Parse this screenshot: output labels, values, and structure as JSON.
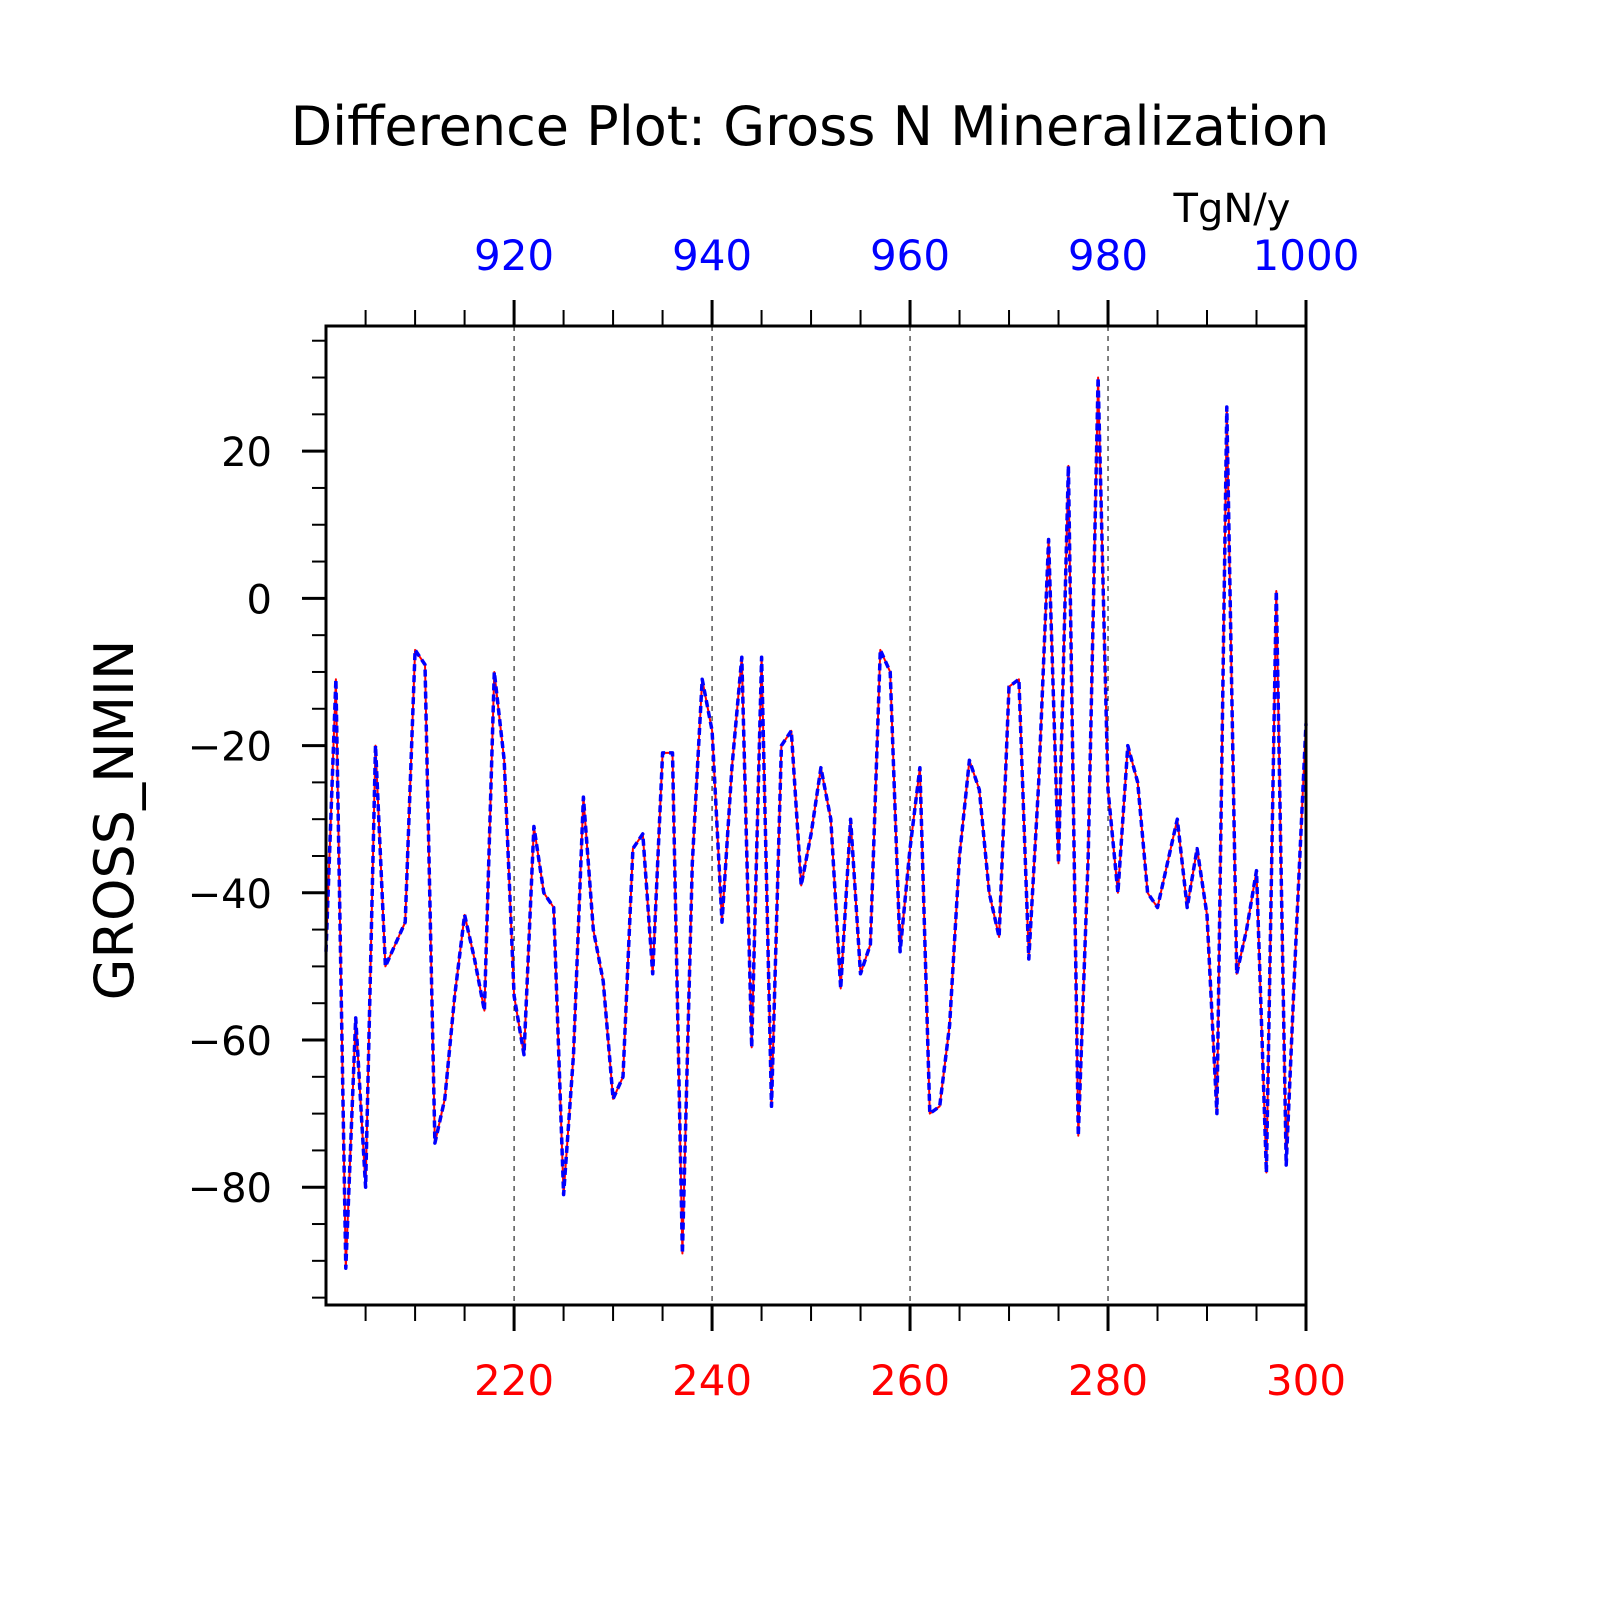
{
  "chart_data": {
    "type": "line",
    "title": "Difference Plot: Gross N Mineralization",
    "units": "TgN/y",
    "ylabel": "GROSS_NMIN",
    "xlim": [
      201,
      300
    ],
    "ylim": [
      -96,
      37
    ],
    "x_bottom": {
      "ticks": [
        220,
        240,
        260,
        280,
        300
      ],
      "color": "#ff0000"
    },
    "x_top": {
      "ticks": [
        920,
        940,
        960,
        980,
        1000
      ],
      "color": "#0000ff"
    },
    "y_ticks": [
      20,
      0,
      -20,
      -40,
      -60,
      -80
    ],
    "y_tick_labels": [
      "20",
      "0",
      "−20",
      "−40",
      "−60",
      "−80"
    ],
    "gridlines_x": [
      220,
      240,
      260,
      280
    ],
    "series": [
      {
        "color": "#ff0000",
        "style": "solid",
        "x": [
          201,
          202,
          203,
          204,
          205,
          206,
          207,
          208,
          209,
          210,
          211,
          212,
          213,
          214,
          215,
          216,
          217,
          218,
          219,
          220,
          221,
          222,
          223,
          224,
          225,
          226,
          227,
          228,
          229,
          230,
          231,
          232,
          233,
          234,
          235,
          236,
          237,
          238,
          239,
          240,
          241,
          242,
          243,
          244,
          245,
          246,
          247,
          248,
          249,
          250,
          251,
          252,
          253,
          254,
          255,
          256,
          257,
          258,
          259,
          260,
          261,
          262,
          263,
          264,
          265,
          266,
          267,
          268,
          269,
          270,
          271,
          272,
          273,
          274,
          275,
          276,
          277,
          278,
          279,
          280,
          281,
          282,
          283,
          284,
          285,
          286,
          287,
          288,
          289,
          290,
          291,
          292,
          293,
          294,
          295,
          296,
          297,
          298,
          299,
          300
        ],
        "values": [
          -48,
          -11,
          -91,
          -57,
          -80,
          -20,
          -50,
          -47,
          -44,
          -7,
          -9,
          -74,
          -68,
          -54,
          -43,
          -49,
          -56,
          -10,
          -22,
          -54,
          -62,
          -31,
          -40,
          -42,
          -81,
          -62,
          -27,
          -45,
          -52,
          -68,
          -65,
          -34,
          -32,
          -51,
          -21,
          -21,
          -89,
          -36,
          -11,
          -18,
          -44,
          -23,
          -8,
          -61,
          -8,
          -69,
          -20,
          -18,
          -39,
          -32,
          -23,
          -30,
          -53,
          -30,
          -51,
          -47,
          -7,
          -10,
          -48,
          -34,
          -23,
          -70,
          -69,
          -58,
          -35,
          -22,
          -26,
          -40,
          -46,
          -12,
          -11,
          -49,
          -25,
          8,
          -36,
          18,
          -73,
          -35,
          30,
          -26,
          -40,
          -20,
          -25,
          -40,
          -42,
          -36,
          -30,
          -42,
          -34,
          -43,
          -70,
          26,
          -51,
          -45,
          -37,
          -78,
          1,
          -77,
          -46,
          -17
        ]
      },
      {
        "color": "#0000ff",
        "style": "dashed",
        "x": [
          901,
          902,
          903,
          904,
          905,
          906,
          907,
          908,
          909,
          910,
          911,
          912,
          913,
          914,
          915,
          916,
          917,
          918,
          919,
          920,
          921,
          922,
          923,
          924,
          925,
          926,
          927,
          928,
          929,
          930,
          931,
          932,
          933,
          934,
          935,
          936,
          937,
          938,
          939,
          940,
          941,
          942,
          943,
          944,
          945,
          946,
          947,
          948,
          949,
          950,
          951,
          952,
          953,
          954,
          955,
          956,
          957,
          958,
          959,
          960,
          961,
          962,
          963,
          964,
          965,
          966,
          967,
          968,
          969,
          970,
          971,
          972,
          973,
          974,
          975,
          976,
          977,
          978,
          979,
          980,
          981,
          982,
          983,
          984,
          985,
          986,
          987,
          988,
          989,
          990,
          991,
          992,
          993,
          994,
          995,
          996,
          997,
          998,
          999,
          1000
        ],
        "values": [
          -48,
          -11,
          -91,
          -57,
          -80,
          -20,
          -50,
          -47,
          -44,
          -7,
          -9,
          -74,
          -68,
          -54,
          -43,
          -49,
          -56,
          -10,
          -22,
          -54,
          -62,
          -31,
          -40,
          -42,
          -81,
          -62,
          -27,
          -45,
          -52,
          -68,
          -65,
          -34,
          -32,
          -51,
          -21,
          -21,
          -89,
          -36,
          -11,
          -18,
          -44,
          -23,
          -8,
          -61,
          -8,
          -69,
          -20,
          -18,
          -39,
          -32,
          -23,
          -30,
          -53,
          -30,
          -51,
          -47,
          -7,
          -10,
          -48,
          -34,
          -23,
          -70,
          -69,
          -58,
          -35,
          -22,
          -26,
          -40,
          -46,
          -12,
          -11,
          -49,
          -25,
          8,
          -36,
          18,
          -73,
          -35,
          30,
          -26,
          -40,
          -20,
          -25,
          -40,
          -42,
          -36,
          -30,
          -42,
          -34,
          -43,
          -70,
          26,
          -51,
          -45,
          -37,
          -78,
          1,
          -77,
          -46,
          -17
        ]
      }
    ]
  }
}
